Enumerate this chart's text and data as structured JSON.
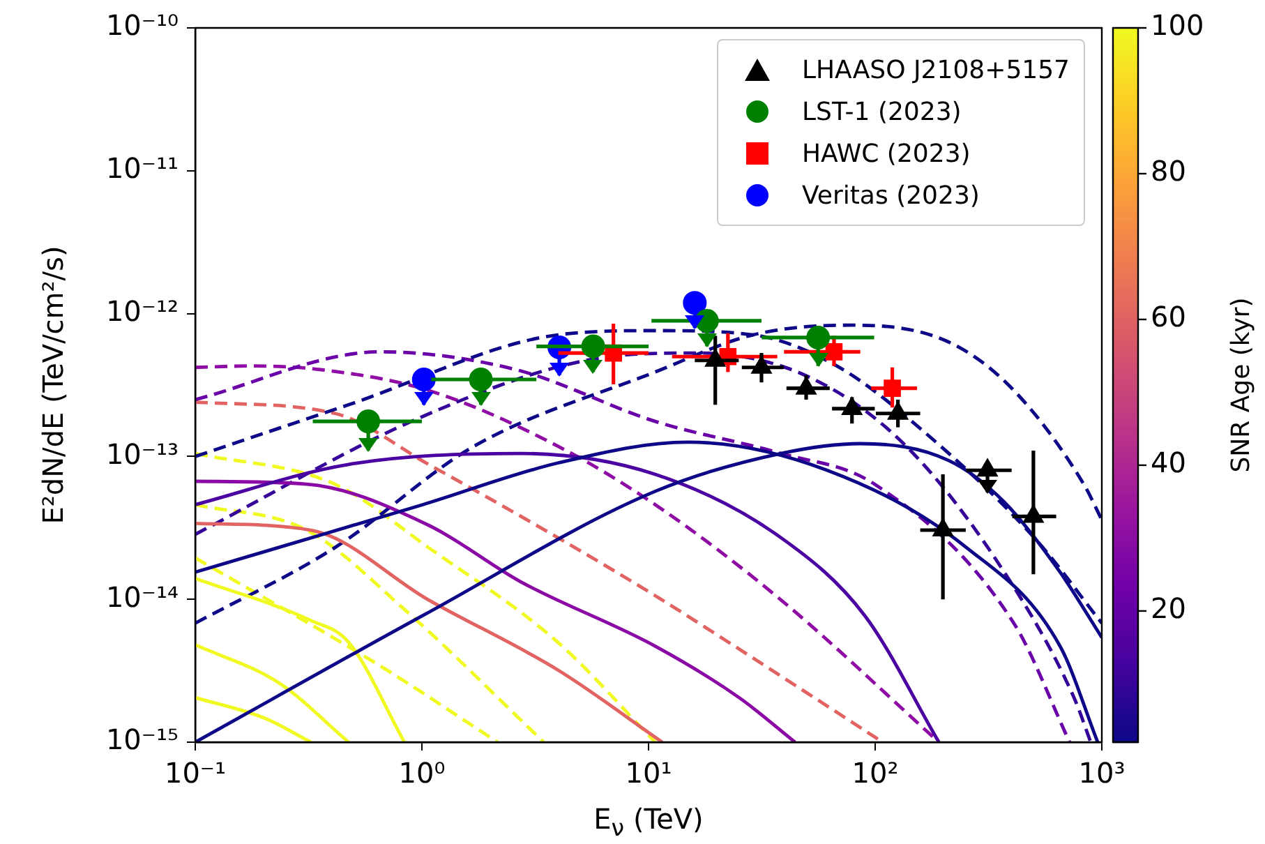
{
  "chart_data": {
    "type": "scatter",
    "log": "xy",
    "legend": "top right",
    "xlabel": "E$_{ν}$ (TeV)",
    "ylabel": "E²dN/dE (TeV/cm²/s)",
    "clabel": "SNR Age (kyr)",
    "clim": [
      2,
      100
    ],
    "cticks": [
      20,
      40,
      60,
      80,
      100
    ],
    "xlim": [
      0.1,
      1000
    ],
    "ylim": [
      1e-15,
      1e-10
    ],
    "xticks": [
      {
        "value": 0.1,
        "label": "10⁻¹"
      },
      {
        "value": 1,
        "label": "10⁰"
      },
      {
        "value": 10,
        "label": "10¹"
      },
      {
        "value": 100,
        "label": "10²"
      },
      {
        "value": 1000,
        "label": "10³"
      }
    ],
    "yticks": [
      {
        "value": 1e-15,
        "label": "10⁻¹⁵"
      },
      {
        "value": 1e-14,
        "label": "10⁻¹⁴"
      },
      {
        "value": 1e-13,
        "label": "10⁻¹³"
      },
      {
        "value": 1e-12,
        "label": "10⁻¹²"
      },
      {
        "value": 1e-11,
        "label": "10⁻¹¹"
      },
      {
        "value": 1e-10,
        "label": "10⁻¹⁰"
      }
    ],
    "series": [
      {
        "type": "line",
        "line_style": "solid",
        "color": "#0d0887",
        "x": [
          0.1,
          1.01,
          10.7,
          38.4,
          86.1,
          210,
          371,
          654,
          1000
        ],
        "values": [
          1e-15,
          7.7e-15,
          5.7e-14,
          1.05e-13,
          1.23e-13,
          9.4e-14,
          4.8e-14,
          1.55e-14,
          5.4e-15
        ]
      },
      {
        "type": "line",
        "line_style": "solid",
        "color": "#0d0887",
        "x": [
          0.1,
          1.01,
          3.98,
          14.9,
          61.4,
          253,
          654,
          959
        ],
        "values": [
          1.55e-14,
          4.6e-14,
          9e-14,
          1.26e-13,
          8e-14,
          2.3e-14,
          4.7e-15,
          1e-15
        ]
      },
      {
        "type": "line",
        "line_style": "solid",
        "color": "#4b03a1",
        "x": [
          0.1,
          0.475,
          2.72,
          10.7,
          38.4,
          89.9,
          191
        ],
        "values": [
          4.6e-14,
          8.8e-14,
          1.05e-13,
          7.5e-14,
          2.7e-14,
          7.7e-15,
          1e-15
        ]
      },
      {
        "type": "line",
        "line_style": "solid",
        "color": "#8b0aa5",
        "x": [
          0.1,
          0.31,
          1.07,
          2.72,
          10.7,
          25.1,
          44.3
        ],
        "values": [
          6.7e-14,
          6.4e-14,
          3.3e-14,
          1.33e-14,
          4.7e-15,
          2.05e-15,
          1e-15
        ]
      },
      {
        "type": "line",
        "line_style": "solid",
        "color": "#e16462",
        "x": [
          0.1,
          0.324,
          1.07,
          3.98,
          11.5
        ],
        "values": [
          3.4e-14,
          3.05e-14,
          9.9e-15,
          3.2e-15,
          1e-15
        ]
      },
      {
        "type": "line",
        "line_style": "solid",
        "color": "#f0f921",
        "x": [
          0.1,
          0.324,
          0.475,
          0.837
        ],
        "values": [
          1.4e-14,
          7.1e-15,
          5e-15,
          1e-15
        ]
      },
      {
        "type": "line",
        "line_style": "solid",
        "color": "#f0f921",
        "x": [
          0.1,
          0.234,
          0.475
        ],
        "values": [
          4.8e-15,
          2.6e-15,
          1e-15
        ]
      },
      {
        "type": "line",
        "line_style": "solid",
        "color": "#f0f921",
        "x": [
          0.1,
          0.203,
          0.324
        ],
        "values": [
          2.05e-15,
          1.47e-15,
          1e-15
        ]
      },
      {
        "type": "line",
        "line_style": "dashed",
        "color": "#0d0887",
        "x": [
          0.1,
          0.413,
          1.7,
          10.7,
          28.9,
          78,
          210,
          409,
          832,
          1000
        ],
        "values": [
          6.8e-15,
          2.3e-14,
          1.18e-13,
          3.9e-13,
          7.1e-13,
          8.3e-13,
          6.35e-13,
          2.9e-13,
          6.4e-14,
          3.6e-14
        ]
      },
      {
        "type": "line",
        "line_style": "dashed",
        "color": "#0d0887",
        "x": [
          0.1,
          0.475,
          3.98,
          10.7,
          28.9,
          67.7,
          158,
          514,
          1000
        ],
        "values": [
          1e-13,
          2.3e-13,
          7.1e-13,
          7.6e-13,
          7.1e-13,
          4.3e-13,
          1.57e-13,
          2.6e-14,
          6.8e-15
        ]
      },
      {
        "type": "line",
        "line_style": "dashed",
        "color": "#350498",
        "x": [
          0.1,
          0.966,
          5.28,
          16.4,
          51,
          137,
          371,
          754,
          893
        ],
        "values": [
          2.85e-14,
          1.85e-13,
          4.7e-13,
          5.3e-13,
          3.6e-13,
          1.18e-13,
          1.55e-14,
          2.05e-15,
          1e-15
        ]
      },
      {
        "type": "line",
        "line_style": "dashed",
        "color": "#6a00a8",
        "x": [
          0.1,
          0.658,
          2.6,
          10.7,
          38.4,
          99.3,
          409,
          721
        ],
        "values": [
          2.5e-13,
          5.4e-13,
          4.05e-13,
          1.76e-13,
          1.05e-13,
          6.4e-14,
          6.8e-15,
          1e-15
        ]
      },
      {
        "type": "line",
        "line_style": "dashed",
        "color": "#8f0da4",
        "x": [
          0.1,
          0.176,
          0.358,
          1.07,
          3.98,
          10.7,
          38.4,
          191
        ],
        "values": [
          4.2e-13,
          4.3e-13,
          4.05e-13,
          2.9e-13,
          1.18e-13,
          4.6e-14,
          9.9e-15,
          1e-15
        ]
      },
      {
        "type": "line",
        "line_style": "dashed",
        "color": "#e16462",
        "x": [
          0.1,
          0.413,
          1.07,
          3.98,
          10.7,
          38.4,
          108
        ],
        "values": [
          2.4e-13,
          2e-13,
          8.8e-14,
          2.7e-14,
          1.06e-14,
          2.9e-15,
          1e-15
        ]
      },
      {
        "type": "line",
        "line_style": "dashed",
        "color": "#f0f921",
        "x": [
          0.1,
          0.413,
          1.07,
          3.98,
          10.7
        ],
        "values": [
          1.05e-13,
          6.4e-14,
          2.3e-14,
          5e-15,
          1e-15
        ]
      },
      {
        "type": "line",
        "line_style": "dashed",
        "color": "#f0f921",
        "x": [
          0.1,
          0.31,
          0.837,
          3.45
        ],
        "values": [
          4.6e-14,
          3.05e-14,
          8.5e-15,
          1e-15
        ]
      },
      {
        "type": "line",
        "line_style": "dashed",
        "color": "#f0f921",
        "x": [
          0.1,
          0.658,
          2.16
        ],
        "values": [
          1.95e-14,
          3.4e-15,
          1e-15
        ]
      },
      {
        "type": "scatter",
        "name": "LHAASO J2108+5157",
        "color": "#000000",
        "marker": "triangle",
        "x": [
          19.7,
          31.5,
          49.6,
          79,
          126,
          199,
          313,
          499
        ],
        "values": [
          4.7e-13,
          4.2e-13,
          3e-13,
          2.16e-13,
          2e-13,
          3.05e-14,
          8e-14,
          3.8e-14
        ],
        "errors": [
          [
            2.3e-13,
            7e-13
          ],
          [
            3.3e-13,
            5.3e-13
          ],
          [
            2.5e-13,
            3.7e-13
          ],
          [
            1.7e-13,
            2.6e-13
          ],
          [
            1.6e-13,
            2.5e-13
          ],
          [
            1e-14,
            7.5e-14
          ],
          [
            5.6e-14,
            8e-14
          ],
          [
            1.5e-14,
            1.1e-13
          ]
        ],
        "xerrors": [
          [
            16,
            25
          ],
          [
            25.8,
            39.5
          ],
          [
            40.6,
            63
          ],
          [
            64.5,
            99.6
          ],
          [
            100.7,
            158
          ],
          [
            158,
            251
          ],
          [
            252,
            400
          ],
          [
            403,
            629
          ]
        ]
      },
      {
        "type": "scatter",
        "name": "LST-1 (2023)",
        "color": "#008000",
        "marker": "circle",
        "x": [
          0.58,
          1.82,
          5.7,
          18.1,
          56
        ],
        "values": [
          1.76e-13,
          3.46e-13,
          5.9e-13,
          8.9e-13,
          6.8e-13
        ],
        "errors": [
          [
            1.1e-13,
            1.76e-13
          ],
          [
            2.3e-13,
            3.46e-13
          ],
          [
            3.9e-13,
            5.9e-13
          ],
          [
            5.9e-13,
            8.9e-13
          ],
          [
            4.3e-13,
            6.8e-13
          ]
        ],
        "xerrors": [
          [
            0.33,
            1
          ],
          [
            1.1,
            3.2
          ],
          [
            3.2,
            10
          ],
          [
            10.3,
            31.5
          ],
          [
            31.6,
            99
          ]
        ]
      },
      {
        "type": "scatter",
        "name": "HAWC (2023)",
        "color": "#ff0000",
        "marker": "square",
        "x": [
          7,
          22.4,
          65.8,
          119
        ],
        "values": [
          5.3e-13,
          5e-13,
          5.4e-13,
          3e-13
        ],
        "errors": [
          [
            3.2e-13,
            8.5e-13
          ],
          [
            3.9e-13,
            7.3e-13
          ],
          [
            4.3e-13,
            7e-13
          ],
          [
            2.2e-13,
            4.2e-13
          ]
        ],
        "xerrors": [
          [
            4,
            10
          ],
          [
            12.7,
            37
          ],
          [
            39.6,
            86
          ],
          [
            96,
            153
          ]
        ]
      },
      {
        "type": "scatter",
        "name": "Veritas (2023)",
        "color": "#0000ff",
        "marker": "circle",
        "x": [
          1.02,
          4.04,
          16
        ],
        "values": [
          3.46e-13,
          5.8e-13,
          1.19e-12
        ],
        "errors": [
          [
            2.3e-13,
            3.46e-13
          ],
          [
            3.7e-13,
            5.8e-13
          ],
          [
            7.9e-13,
            1.19e-12
          ]
        ]
      }
    ]
  }
}
